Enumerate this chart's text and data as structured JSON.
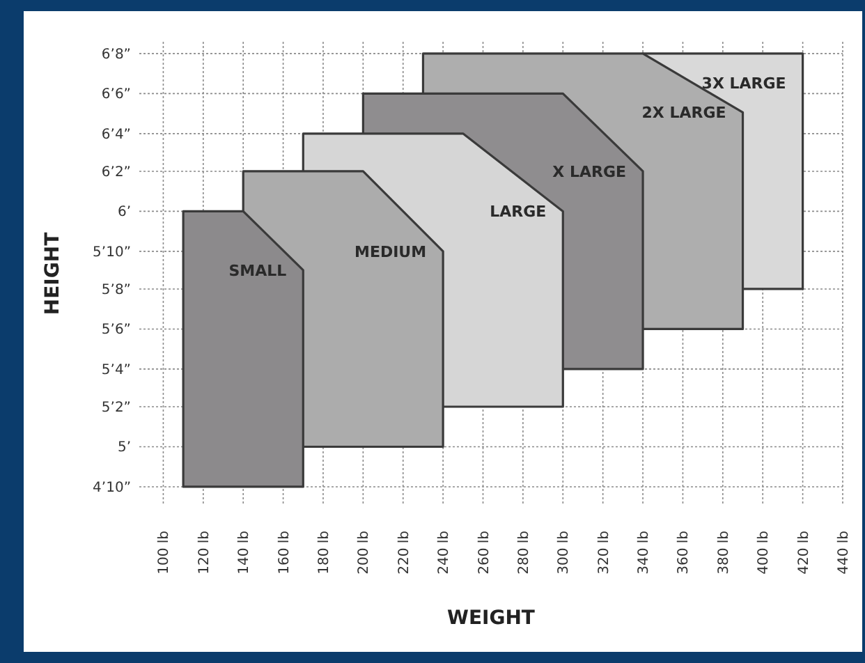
{
  "chart_data": {
    "type": "area",
    "xlabel": "WEIGHT",
    "ylabel": "HEIGHT",
    "xlim": [
      88,
      440
    ],
    "ylim": [
      4.75,
      6.72
    ],
    "xticks": [
      {
        "value": 100,
        "label": "100 lb"
      },
      {
        "value": 120,
        "label": "120 lb"
      },
      {
        "value": 140,
        "label": "140 lb"
      },
      {
        "value": 160,
        "label": "160 lb"
      },
      {
        "value": 180,
        "label": "180 lb"
      },
      {
        "value": 200,
        "label": "200 lb"
      },
      {
        "value": 220,
        "label": "220 lb"
      },
      {
        "value": 240,
        "label": "240 lb"
      },
      {
        "value": 260,
        "label": "260 lb"
      },
      {
        "value": 280,
        "label": "280 lb"
      },
      {
        "value": 300,
        "label": "300 lb"
      },
      {
        "value": 320,
        "label": "320 lb"
      },
      {
        "value": 340,
        "label": "340 lb"
      },
      {
        "value": 360,
        "label": "360 lb"
      },
      {
        "value": 380,
        "label": "380 lb"
      },
      {
        "value": 400,
        "label": "400 lb"
      },
      {
        "value": 420,
        "label": "420 lb"
      },
      {
        "value": 440,
        "label": "440 lb"
      }
    ],
    "yticks": [
      {
        "value": 4.83,
        "label": "4’10”"
      },
      {
        "value": 5,
        "label": "5’"
      },
      {
        "value": 5.17,
        "label": "5’2”"
      },
      {
        "value": 5.33,
        "label": "5’4”"
      },
      {
        "value": 5.5,
        "label": "5’6”"
      },
      {
        "value": 5.67,
        "label": "5’8”"
      },
      {
        "value": 5.83,
        "label": "5’10”"
      },
      {
        "value": 6,
        "label": "6’"
      },
      {
        "value": 6.17,
        "label": "6’2”"
      },
      {
        "value": 6.33,
        "label": "6’4”"
      },
      {
        "value": 6.5,
        "label": "6’6”"
      },
      {
        "value": 6.67,
        "label": "6’8”"
      }
    ],
    "grid": true,
    "series": [
      {
        "name": "SMALL",
        "color": "#8c8a8c",
        "x": [
          110,
          110,
          140,
          170,
          170
        ],
        "values": [
          4.83,
          6,
          6,
          5.75,
          4.83
        ]
      },
      {
        "name": "MEDIUM",
        "color": "#acacac",
        "x": [
          140,
          200,
          240,
          240
        ],
        "values": [
          6.17,
          6.17,
          5.83,
          5
        ]
      },
      {
        "name": "LARGE",
        "color": "#d6d6d6",
        "x": [
          170,
          250,
          300,
          300
        ],
        "values": [
          6.33,
          6.33,
          6,
          5.17
        ]
      },
      {
        "name": "X LARGE",
        "color": "#8f8d8f",
        "x": [
          200,
          300,
          340,
          340
        ],
        "values": [
          6.5,
          6.5,
          6.17,
          5.33
        ]
      },
      {
        "name": "2X LARGE",
        "color": "#aeaeae",
        "x": [
          230,
          340,
          390,
          390
        ],
        "values": [
          6.67,
          6.67,
          6.42,
          5.5
        ]
      },
      {
        "name": "3X LARGE",
        "color": "#d9d9d9",
        "x": [
          340,
          420,
          420
        ],
        "values": [
          6.67,
          6.67,
          5.67
        ]
      }
    ]
  }
}
